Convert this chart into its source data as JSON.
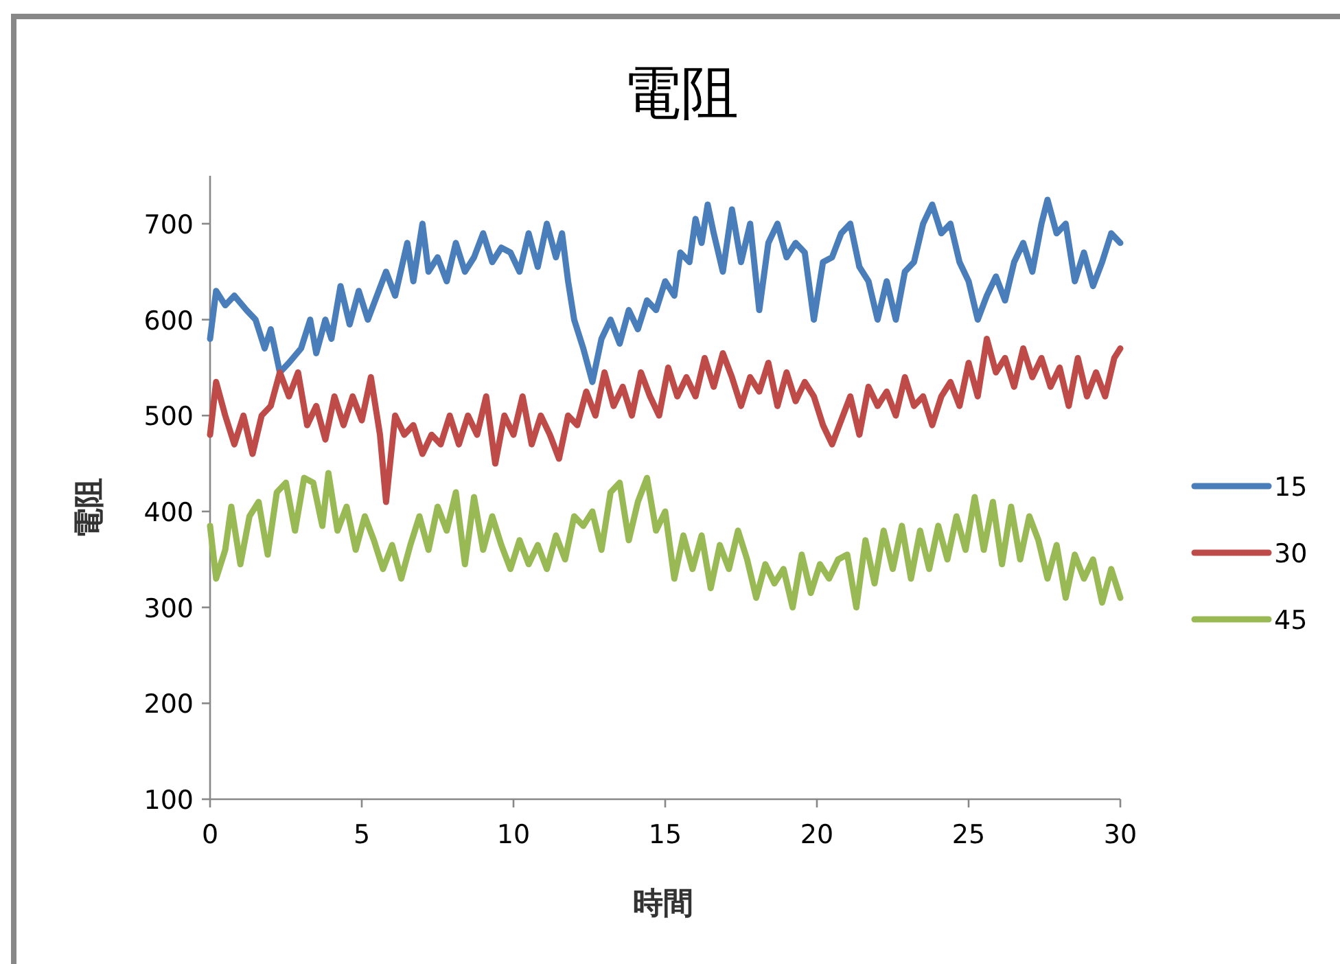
{
  "chart_data": {
    "type": "line",
    "title": "電阻",
    "xlabel": "時間",
    "ylabel": "電阻",
    "xlim": [
      0,
      30
    ],
    "xticks": [
      0,
      5,
      10,
      15,
      20,
      25,
      30
    ],
    "ylim": [
      100,
      750
    ],
    "yticks": [
      100,
      200,
      300,
      400,
      500,
      600,
      700
    ],
    "grid": false,
    "legend": "right",
    "marker": "none",
    "line_style": "solid",
    "series": [
      {
        "name": "15",
        "color": "#4a7ebb",
        "x": [
          0,
          0.2,
          0.5,
          0.8,
          1.2,
          1.5,
          1.8,
          2.0,
          2.3,
          2.6,
          3.0,
          3.3,
          3.5,
          3.8,
          4.0,
          4.3,
          4.6,
          4.9,
          5.2,
          5.5,
          5.8,
          6.1,
          6.5,
          6.7,
          7.0,
          7.2,
          7.5,
          7.8,
          8.1,
          8.4,
          8.7,
          9.0,
          9.3,
          9.6,
          9.9,
          10.2,
          10.5,
          10.8,
          11.1,
          11.4,
          11.6,
          11.8,
          12.0,
          12.3,
          12.6,
          12.9,
          13.2,
          13.5,
          13.8,
          14.1,
          14.4,
          14.7,
          15.0,
          15.3,
          15.5,
          15.8,
          16.0,
          16.2,
          16.4,
          16.6,
          16.9,
          17.2,
          17.5,
          17.8,
          18.1,
          18.4,
          18.7,
          19.0,
          19.3,
          19.6,
          19.9,
          20.2,
          20.5,
          20.8,
          21.1,
          21.4,
          21.7,
          22.0,
          22.3,
          22.6,
          22.9,
          23.2,
          23.5,
          23.8,
          24.1,
          24.4,
          24.7,
          25.0,
          25.3,
          25.6,
          25.9,
          26.2,
          26.5,
          26.8,
          27.1,
          27.4,
          27.6,
          27.9,
          28.2,
          28.5,
          28.8,
          29.1,
          29.4,
          29.7,
          30.0
        ],
        "values": [
          580,
          630,
          615,
          625,
          610,
          600,
          570,
          590,
          545,
          555,
          570,
          600,
          565,
          600,
          580,
          635,
          595,
          630,
          600,
          625,
          650,
          625,
          680,
          640,
          700,
          650,
          665,
          640,
          680,
          650,
          665,
          690,
          660,
          675,
          670,
          650,
          690,
          655,
          700,
          665,
          690,
          640,
          600,
          570,
          535,
          580,
          600,
          575,
          610,
          590,
          620,
          610,
          640,
          625,
          670,
          660,
          705,
          680,
          720,
          690,
          650,
          715,
          660,
          700,
          610,
          680,
          700,
          665,
          680,
          670,
          600,
          660,
          665,
          690,
          700,
          655,
          640,
          600,
          640,
          600,
          650,
          660,
          700,
          720,
          690,
          700,
          660,
          640,
          600,
          625,
          645,
          620,
          660,
          680,
          650,
          700,
          725,
          690,
          700,
          640,
          670,
          635,
          660,
          690,
          680
        ]
      },
      {
        "name": "30",
        "color": "#be4b48",
        "x": [
          0,
          0.2,
          0.5,
          0.8,
          1.1,
          1.4,
          1.7,
          2.0,
          2.3,
          2.6,
          2.9,
          3.2,
          3.5,
          3.8,
          4.1,
          4.4,
          4.7,
          5.0,
          5.3,
          5.6,
          5.8,
          6.1,
          6.4,
          6.7,
          7.0,
          7.3,
          7.6,
          7.9,
          8.2,
          8.5,
          8.8,
          9.1,
          9.4,
          9.7,
          10.0,
          10.3,
          10.6,
          10.9,
          11.2,
          11.5,
          11.8,
          12.1,
          12.4,
          12.7,
          13.0,
          13.3,
          13.6,
          13.9,
          14.2,
          14.5,
          14.8,
          15.1,
          15.4,
          15.7,
          16.0,
          16.3,
          16.6,
          16.9,
          17.2,
          17.5,
          17.8,
          18.1,
          18.4,
          18.7,
          19.0,
          19.3,
          19.6,
          19.9,
          20.2,
          20.5,
          20.8,
          21.1,
          21.4,
          21.7,
          22.0,
          22.3,
          22.6,
          22.9,
          23.2,
          23.5,
          23.8,
          24.1,
          24.4,
          24.7,
          25.0,
          25.3,
          25.6,
          25.9,
          26.2,
          26.5,
          26.8,
          27.1,
          27.4,
          27.7,
          28.0,
          28.3,
          28.6,
          28.9,
          29.2,
          29.5,
          29.8,
          30.0
        ],
        "values": [
          480,
          535,
          500,
          470,
          500,
          460,
          500,
          510,
          545,
          520,
          545,
          490,
          510,
          475,
          520,
          490,
          520,
          495,
          540,
          480,
          410,
          500,
          480,
          490,
          460,
          480,
          470,
          500,
          470,
          500,
          480,
          520,
          450,
          500,
          480,
          520,
          470,
          500,
          480,
          455,
          500,
          490,
          525,
          500,
          545,
          510,
          530,
          500,
          545,
          520,
          500,
          550,
          520,
          540,
          520,
          560,
          530,
          565,
          540,
          510,
          540,
          525,
          555,
          510,
          545,
          515,
          535,
          520,
          490,
          470,
          495,
          520,
          480,
          530,
          510,
          525,
          500,
          540,
          510,
          520,
          490,
          520,
          535,
          510,
          555,
          520,
          580,
          545,
          560,
          530,
          570,
          540,
          560,
          530,
          550,
          510,
          560,
          520,
          545,
          520,
          560,
          570
        ]
      },
      {
        "name": "45",
        "color": "#98b954",
        "x": [
          0,
          0.2,
          0.5,
          0.7,
          1.0,
          1.3,
          1.6,
          1.9,
          2.2,
          2.5,
          2.8,
          3.1,
          3.4,
          3.7,
          3.9,
          4.2,
          4.5,
          4.8,
          5.1,
          5.4,
          5.7,
          6.0,
          6.3,
          6.6,
          6.9,
          7.2,
          7.5,
          7.8,
          8.1,
          8.4,
          8.7,
          9.0,
          9.3,
          9.6,
          9.9,
          10.2,
          10.5,
          10.8,
          11.1,
          11.4,
          11.7,
          12.0,
          12.3,
          12.6,
          12.9,
          13.2,
          13.5,
          13.8,
          14.1,
          14.4,
          14.7,
          15.0,
          15.3,
          15.6,
          15.9,
          16.2,
          16.5,
          16.8,
          17.1,
          17.4,
          17.7,
          18.0,
          18.3,
          18.6,
          18.9,
          19.2,
          19.5,
          19.8,
          20.1,
          20.4,
          20.7,
          21.0,
          21.3,
          21.6,
          21.9,
          22.2,
          22.5,
          22.8,
          23.1,
          23.4,
          23.7,
          24.0,
          24.3,
          24.6,
          24.9,
          25.2,
          25.5,
          25.8,
          26.1,
          26.4,
          26.7,
          27.0,
          27.3,
          27.6,
          27.9,
          28.2,
          28.5,
          28.8,
          29.1,
          29.4,
          29.7,
          30.0
        ],
        "values": [
          385,
          330,
          360,
          405,
          345,
          395,
          410,
          355,
          420,
          430,
          380,
          435,
          430,
          385,
          440,
          380,
          405,
          360,
          395,
          370,
          340,
          365,
          330,
          365,
          395,
          360,
          405,
          380,
          420,
          345,
          415,
          360,
          395,
          365,
          340,
          370,
          345,
          365,
          340,
          375,
          350,
          395,
          385,
          400,
          360,
          420,
          430,
          370,
          410,
          435,
          380,
          400,
          330,
          375,
          340,
          375,
          320,
          365,
          340,
          380,
          350,
          310,
          345,
          325,
          340,
          300,
          355,
          315,
          345,
          330,
          350,
          355,
          300,
          370,
          325,
          380,
          340,
          385,
          330,
          380,
          340,
          385,
          350,
          395,
          360,
          415,
          360,
          410,
          345,
          405,
          350,
          395,
          370,
          330,
          365,
          310,
          355,
          330,
          350,
          305,
          340,
          310
        ]
      }
    ]
  }
}
